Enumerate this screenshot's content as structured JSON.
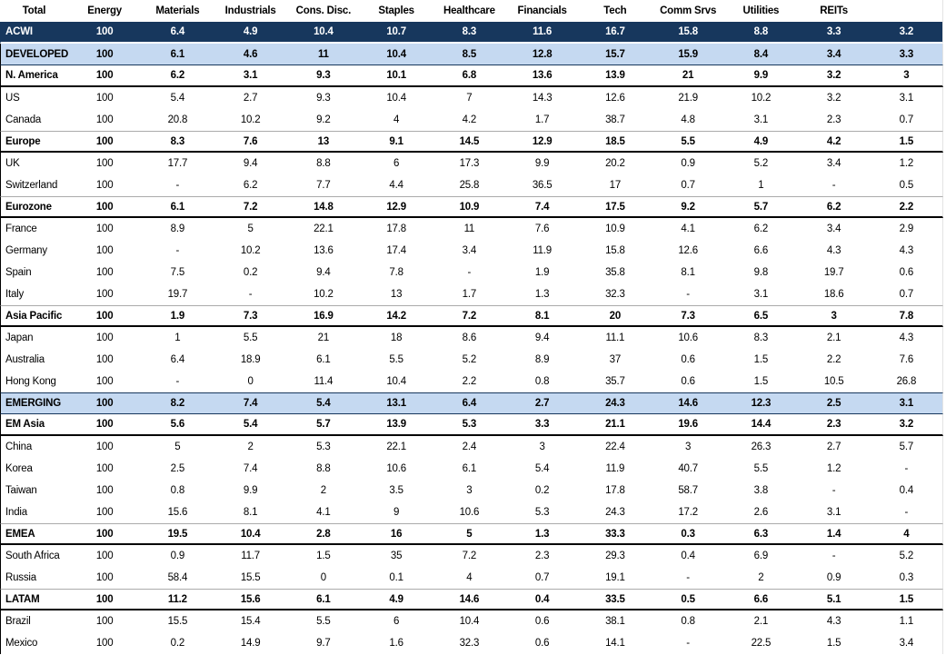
{
  "colors": {
    "dark_row_bg": "#17375D",
    "dark_row_text": "#FFFFFF",
    "highlight_row_bg": "#C5D9F1",
    "section_rule": "#000000",
    "gray_rule": "#ABABAB"
  },
  "table": {
    "columns": [
      "Total",
      "Energy",
      "Materials",
      "Industrials",
      "Cons. Disc.",
      "Staples",
      "Healthcare",
      "Financials",
      "Tech",
      "Comm Srvs",
      "Utilities",
      "REITs",
      ""
    ],
    "rows": [
      {
        "label": "ACWI",
        "style": "dark",
        "values": [
          "100",
          "6.4",
          "4.9",
          "10.4",
          "10.7",
          "8.3",
          "11.6",
          "16.7",
          "15.8",
          "8.8",
          "3.3",
          "3.2"
        ]
      },
      {
        "label": "DEVELOPED",
        "style": "highlight",
        "values": [
          "100",
          "6.1",
          "4.6",
          "11",
          "10.4",
          "8.5",
          "12.8",
          "15.7",
          "15.9",
          "8.4",
          "3.4",
          "3.3"
        ]
      },
      {
        "label": "N. America",
        "style": "section",
        "values": [
          "100",
          "6.2",
          "3.1",
          "9.3",
          "10.1",
          "6.8",
          "13.6",
          "13.9",
          "21",
          "9.9",
          "3.2",
          "3"
        ]
      },
      {
        "label": "US",
        "style": "plain",
        "values": [
          "100",
          "5.4",
          "2.7",
          "9.3",
          "10.4",
          "7",
          "14.3",
          "12.6",
          "21.9",
          "10.2",
          "3.2",
          "3.1"
        ]
      },
      {
        "label": "Canada",
        "style": "plain",
        "values": [
          "100",
          "20.8",
          "10.2",
          "9.2",
          "4",
          "4.2",
          "1.7",
          "38.7",
          "4.8",
          "3.1",
          "2.3",
          "0.7"
        ]
      },
      {
        "label": "Europe",
        "style": "section",
        "values": [
          "100",
          "8.3",
          "7.6",
          "13",
          "9.1",
          "14.5",
          "12.9",
          "18.5",
          "5.5",
          "4.9",
          "4.2",
          "1.5"
        ]
      },
      {
        "label": "UK",
        "style": "plain",
        "values": [
          "100",
          "17.7",
          "9.4",
          "8.8",
          "6",
          "17.3",
          "9.9",
          "20.2",
          "0.9",
          "5.2",
          "3.4",
          "1.2"
        ]
      },
      {
        "label": "Switzerland",
        "style": "plain",
        "values": [
          "100",
          "-",
          "6.2",
          "7.7",
          "4.4",
          "25.8",
          "36.5",
          "17",
          "0.7",
          "1",
          "-",
          "0.5"
        ]
      },
      {
        "label": "Eurozone",
        "style": "section",
        "values": [
          "100",
          "6.1",
          "7.2",
          "14.8",
          "12.9",
          "10.9",
          "7.4",
          "17.5",
          "9.2",
          "5.7",
          "6.2",
          "2.2"
        ]
      },
      {
        "label": "France",
        "style": "plain",
        "values": [
          "100",
          "8.9",
          "5",
          "22.1",
          "17.8",
          "11",
          "7.6",
          "10.9",
          "4.1",
          "6.2",
          "3.4",
          "2.9"
        ]
      },
      {
        "label": "Germany",
        "style": "plain",
        "values": [
          "100",
          "-",
          "10.2",
          "13.6",
          "17.4",
          "3.4",
          "11.9",
          "15.8",
          "12.6",
          "6.6",
          "4.3",
          "4.3"
        ]
      },
      {
        "label": "Spain",
        "style": "plain",
        "values": [
          "100",
          "7.5",
          "0.2",
          "9.4",
          "7.8",
          "-",
          "1.9",
          "35.8",
          "8.1",
          "9.8",
          "19.7",
          "0.6"
        ]
      },
      {
        "label": "Italy",
        "style": "plain",
        "values": [
          "100",
          "19.7",
          "-",
          "10.2",
          "13",
          "1.7",
          "1.3",
          "32.3",
          "-",
          "3.1",
          "18.6",
          "0.7"
        ]
      },
      {
        "label": "Asia Pacific",
        "style": "section",
        "values": [
          "100",
          "1.9",
          "7.3",
          "16.9",
          "14.2",
          "7.2",
          "8.1",
          "20",
          "7.3",
          "6.5",
          "3",
          "7.8"
        ]
      },
      {
        "label": "Japan",
        "style": "plain",
        "values": [
          "100",
          "1",
          "5.5",
          "21",
          "18",
          "8.6",
          "9.4",
          "11.1",
          "10.6",
          "8.3",
          "2.1",
          "4.3"
        ]
      },
      {
        "label": "Australia",
        "style": "plain",
        "values": [
          "100",
          "6.4",
          "18.9",
          "6.1",
          "5.5",
          "5.2",
          "8.9",
          "37",
          "0.6",
          "1.5",
          "2.2",
          "7.6"
        ]
      },
      {
        "label": "Hong Kong",
        "style": "plain",
        "values": [
          "100",
          "-",
          "0",
          "11.4",
          "10.4",
          "2.2",
          "0.8",
          "35.7",
          "0.6",
          "1.5",
          "10.5",
          "26.8"
        ]
      },
      {
        "label": "EMERGING",
        "style": "highlight",
        "values": [
          "100",
          "8.2",
          "7.4",
          "5.4",
          "13.1",
          "6.4",
          "2.7",
          "24.3",
          "14.6",
          "12.3",
          "2.5",
          "3.1"
        ]
      },
      {
        "label": "EM Asia",
        "style": "section",
        "values": [
          "100",
          "5.6",
          "5.4",
          "5.7",
          "13.9",
          "5.3",
          "3.3",
          "21.1",
          "19.6",
          "14.4",
          "2.3",
          "3.2"
        ]
      },
      {
        "label": "China",
        "style": "plain",
        "values": [
          "100",
          "5",
          "2",
          "5.3",
          "22.1",
          "2.4",
          "3",
          "22.4",
          "3",
          "26.3",
          "2.7",
          "5.7"
        ]
      },
      {
        "label": "Korea",
        "style": "plain",
        "values": [
          "100",
          "2.5",
          "7.4",
          "8.8",
          "10.6",
          "6.1",
          "5.4",
          "11.9",
          "40.7",
          "5.5",
          "1.2",
          "-"
        ]
      },
      {
        "label": "Taiwan",
        "style": "plain",
        "values": [
          "100",
          "0.8",
          "9.9",
          "2",
          "3.5",
          "3",
          "0.2",
          "17.8",
          "58.7",
          "3.8",
          "-",
          "0.4"
        ]
      },
      {
        "label": "India",
        "style": "plain",
        "values": [
          "100",
          "15.6",
          "8.1",
          "4.1",
          "9",
          "10.6",
          "5.3",
          "24.3",
          "17.2",
          "2.6",
          "3.1",
          "-"
        ]
      },
      {
        "label": "EMEA",
        "style": "section",
        "values": [
          "100",
          "19.5",
          "10.4",
          "2.8",
          "16",
          "5",
          "1.3",
          "33.3",
          "0.3",
          "6.3",
          "1.4",
          "4"
        ]
      },
      {
        "label": "South Africa",
        "style": "plain",
        "values": [
          "100",
          "0.9",
          "11.7",
          "1.5",
          "35",
          "7.2",
          "2.3",
          "29.3",
          "0.4",
          "6.9",
          "-",
          "5.2"
        ]
      },
      {
        "label": "Russia",
        "style": "plain",
        "values": [
          "100",
          "58.4",
          "15.5",
          "0",
          "0.1",
          "4",
          "0.7",
          "19.1",
          "-",
          "2",
          "0.9",
          "0.3"
        ]
      },
      {
        "label": "LATAM",
        "style": "section",
        "values": [
          "100",
          "11.2",
          "15.6",
          "6.1",
          "4.9",
          "14.6",
          "0.4",
          "33.5",
          "0.5",
          "6.6",
          "5.1",
          "1.5"
        ]
      },
      {
        "label": "Brazil",
        "style": "plain",
        "values": [
          "100",
          "15.5",
          "15.4",
          "5.5",
          "6",
          "10.4",
          "0.6",
          "38.1",
          "0.8",
          "2.1",
          "4.3",
          "1.1"
        ]
      },
      {
        "label": "Mexico",
        "style": "plain",
        "values": [
          "100",
          "0.2",
          "14.9",
          "9.7",
          "1.6",
          "32.3",
          "0.6",
          "14.1",
          "-",
          "22.5",
          "1.5",
          "3.4"
        ]
      }
    ]
  }
}
